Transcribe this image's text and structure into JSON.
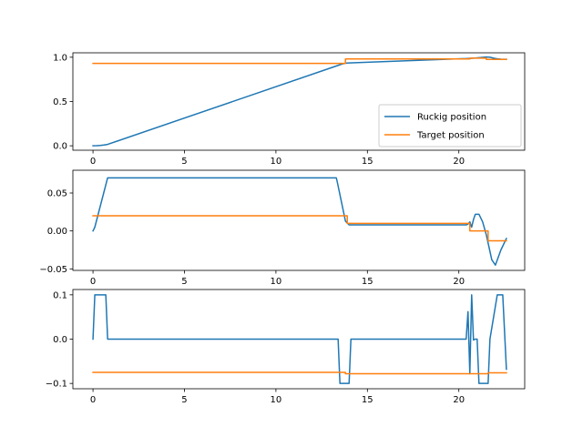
{
  "legend": {
    "placement": "lower-right",
    "entries": [
      {
        "label": "Ruckig position",
        "color": "#1f77b4"
      },
      {
        "label": "Target position",
        "color": "#ff7f0e"
      }
    ]
  },
  "chart_data": [
    {
      "type": "line",
      "xlim": [
        -1.1,
        23.6
      ],
      "ylim": [
        -0.05,
        1.05
      ],
      "xticks": [
        0,
        5,
        10,
        15,
        20
      ],
      "yticks": [
        0.0,
        0.5,
        1.0
      ],
      "ytick_labels": [
        "0.0",
        "0.5",
        "1.0"
      ],
      "grid": false,
      "series": [
        {
          "name": "Ruckig position",
          "color": "#1f77b4",
          "x": [
            0,
            0.2,
            0.4,
            0.6,
            0.8,
            13.5,
            13.6,
            13.7,
            13.8,
            13.9,
            14.0,
            20.5,
            20.7,
            20.9,
            21.1,
            21.3,
            21.5,
            21.7,
            21.9,
            22.1,
            22.3,
            22.6
          ],
          "y": [
            0.0,
            0.001,
            0.004,
            0.009,
            0.016,
            0.915,
            0.922,
            0.928,
            0.932,
            0.935,
            0.936,
            0.986,
            0.988,
            0.991,
            0.995,
            0.999,
            1.002,
            1.0,
            0.99,
            0.982,
            0.978,
            0.977
          ]
        },
        {
          "name": "Target position",
          "color": "#ff7f0e",
          "x": [
            0,
            13.8,
            13.8,
            20.6,
            20.6,
            21.5,
            21.5,
            22.6
          ],
          "y": [
            0.93,
            0.93,
            0.98,
            0.98,
            0.99,
            0.99,
            0.975,
            0.975
          ]
        }
      ]
    },
    {
      "type": "line",
      "xlim": [
        -1.1,
        23.6
      ],
      "ylim": [
        -0.052,
        0.08
      ],
      "xticks": [
        0,
        5,
        10,
        15,
        20
      ],
      "yticks": [
        -0.05,
        0.0,
        0.05
      ],
      "ytick_labels": [
        "−0.05",
        "0.00",
        "0.05"
      ],
      "grid": false,
      "series": [
        {
          "name": "Ruckig position",
          "color": "#1f77b4",
          "x": [
            0,
            0.1,
            0.8,
            13.3,
            13.35,
            13.8,
            14.0,
            20.4,
            20.5,
            20.6,
            20.7,
            20.8,
            20.9,
            21.1,
            21.3,
            21.5,
            21.8,
            22.0,
            22.3,
            22.6
          ],
          "y": [
            0.0,
            0.005,
            0.07,
            0.07,
            0.065,
            0.013,
            0.008,
            0.008,
            0.009,
            0.012,
            0.005,
            0.015,
            0.022,
            0.022,
            0.012,
            -0.005,
            -0.038,
            -0.045,
            -0.025,
            -0.01
          ],
          "note_hidden": ""
        },
        {
          "name": "Target position",
          "color": "#ff7f0e",
          "x": [
            0,
            13.9,
            13.9,
            20.6,
            20.6,
            21.6,
            21.6,
            22.6
          ],
          "y": [
            0.02,
            0.02,
            0.01,
            0.01,
            0.0,
            0.0,
            -0.013,
            -0.013
          ]
        }
      ]
    },
    {
      "type": "line",
      "xlim": [
        -1.1,
        23.6
      ],
      "ylim": [
        -0.112,
        0.112
      ],
      "xticks": [
        0,
        5,
        10,
        15,
        20
      ],
      "yticks": [
        -0.1,
        0.0,
        0.1
      ],
      "ytick_labels": [
        "−0.1",
        "0.0",
        "0.1"
      ],
      "grid": false,
      "series": [
        {
          "name": "Ruckig position",
          "color": "#1f77b4",
          "x": [
            0,
            0.1,
            0.7,
            0.8,
            13.4,
            13.5,
            14.0,
            14.1,
            20.4,
            20.5,
            20.6,
            20.7,
            20.8,
            20.9,
            21.0,
            21.1,
            21.2,
            21.3,
            21.6,
            21.7,
            22.1,
            22.2,
            22.4,
            22.6
          ],
          "y": [
            0.0,
            0.1,
            0.1,
            0.0,
            0.0,
            -0.1,
            -0.1,
            0.0,
            0.0,
            0.062,
            -0.078,
            0.1,
            -0.002,
            0.0,
            0.0,
            -0.1,
            -0.1,
            -0.1,
            -0.1,
            0.0,
            0.1,
            0.1,
            0.1,
            -0.068
          ]
        },
        {
          "name": "Target position",
          "color": "#ff7f0e",
          "x": [
            0,
            13.8,
            13.8,
            21.6,
            21.6,
            22.6
          ],
          "y": [
            -0.075,
            -0.075,
            -0.078,
            -0.078,
            -0.076,
            -0.076
          ]
        }
      ]
    }
  ]
}
